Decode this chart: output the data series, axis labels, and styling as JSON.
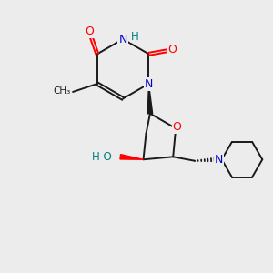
{
  "background_color": "#ececec",
  "atom_colors": {
    "N": "#0000cd",
    "O": "#ff0000",
    "H_label": "#008080"
  },
  "bond_color": "#1a1a1a",
  "bond_width": 1.4,
  "figsize": [
    3.0,
    3.0
  ],
  "dpi": 100,
  "xlim": [
    0,
    10
  ],
  "ylim": [
    0,
    10
  ]
}
